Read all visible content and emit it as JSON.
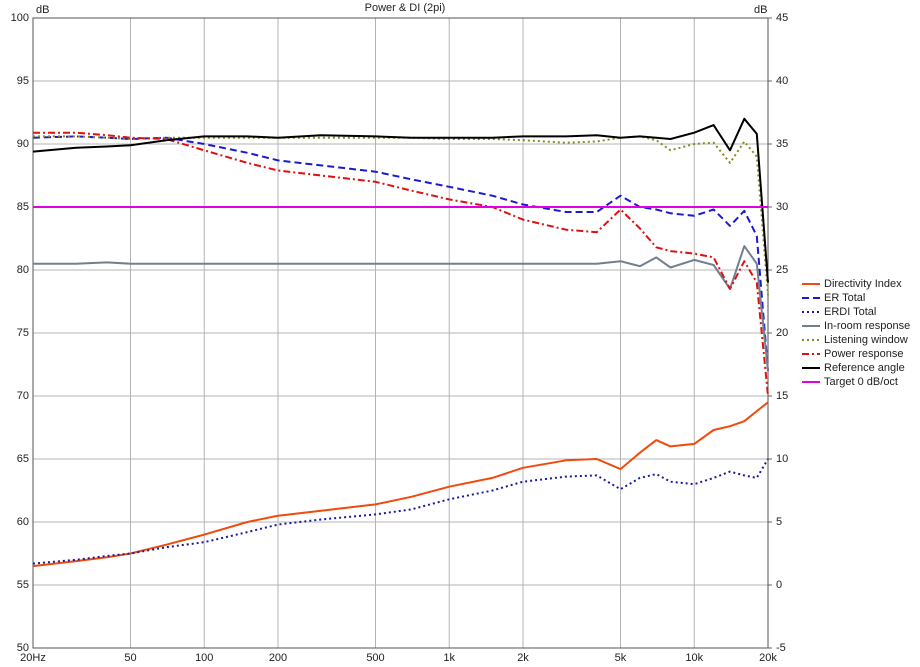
{
  "chart_data": {
    "type": "line",
    "title": "Power & DI (2pi)",
    "y_label": "dB",
    "y2_label": "dB",
    "log_x": true,
    "grid": true,
    "legend": "right",
    "x": [
      20,
      30,
      40,
      50,
      70,
      100,
      150,
      200,
      300,
      500,
      700,
      1000,
      1500,
      2000,
      3000,
      4000,
      5000,
      6000,
      7000,
      8000,
      10000,
      12000,
      14000,
      16000,
      18000,
      20000
    ],
    "xlim": [
      20,
      20000
    ],
    "xticks": [
      {
        "value": 20,
        "label": "20Hz"
      },
      50,
      100,
      200,
      500,
      {
        "value": 1000,
        "label": "1k"
      },
      {
        "value": 2000,
        "label": "2k"
      },
      {
        "value": 5000,
        "label": "5k"
      },
      {
        "value": 10000,
        "label": "10k"
      },
      {
        "value": 20000,
        "label": "20k"
      }
    ],
    "ylim": [
      50,
      100
    ],
    "yticks": [
      50,
      55,
      60,
      65,
      70,
      75,
      80,
      85,
      90,
      95,
      100
    ],
    "y2lim": [
      -5,
      45
    ],
    "y2ticks": [
      -5,
      0,
      5,
      10,
      15,
      20,
      25,
      30,
      35,
      40,
      45
    ],
    "series": [
      {
        "name": "Directivity Index",
        "color": "#f04a0c",
        "dash": "solid",
        "width": 2,
        "axis": "y2",
        "values": [
          1.5,
          1.9,
          2.2,
          2.5,
          3.2,
          4,
          5,
          5.5,
          5.9,
          6.4,
          7,
          7.8,
          8.5,
          9.3,
          9.9,
          10,
          9.2,
          10.5,
          11.5,
          11,
          11.2,
          12.3,
          12.6,
          13,
          13.8,
          14.5
        ]
      },
      {
        "name": "ER Total",
        "color": "#1a1ad0",
        "dash": "dashed",
        "width": 2,
        "values": [
          90.5,
          90.6,
          90.5,
          90.4,
          90.5,
          90,
          89.3,
          88.7,
          88.3,
          87.8,
          87.2,
          86.6,
          85.9,
          85.2,
          84.6,
          84.6,
          85.9,
          85,
          84.8,
          84.5,
          84.3,
          84.8,
          83.5,
          84.7,
          82.7,
          72
        ]
      },
      {
        "name": "ERDI Total",
        "color": "#1a1a99",
        "dash": "dotted",
        "width": 2,
        "axis": "y2",
        "values": [
          1.7,
          2,
          2.3,
          2.5,
          3,
          3.4,
          4.2,
          4.8,
          5.2,
          5.6,
          6,
          6.8,
          7.5,
          8.2,
          8.6,
          8.7,
          7.6,
          8.5,
          8.8,
          8.2,
          8,
          8.5,
          9,
          8.7,
          8.5,
          10
        ]
      },
      {
        "name": "In-room response",
        "color": "#708090",
        "dash": "solid",
        "width": 2,
        "values": [
          80.5,
          80.5,
          80.6,
          80.5,
          80.5,
          80.5,
          80.5,
          80.5,
          80.5,
          80.5,
          80.5,
          80.5,
          80.5,
          80.5,
          80.5,
          80.5,
          80.7,
          80.3,
          81,
          80.2,
          80.8,
          80.4,
          78.5,
          81.9,
          80.5,
          72
        ]
      },
      {
        "name": "Listening window",
        "color": "#8a8a20",
        "dash": "dotted",
        "width": 2,
        "values": [
          90.6,
          90.6,
          90.5,
          90.4,
          90.5,
          90.5,
          90.5,
          90.5,
          90.5,
          90.5,
          90.5,
          90.4,
          90.4,
          90.3,
          90.1,
          90.2,
          90.5,
          90.6,
          90.3,
          89.5,
          90,
          90.1,
          88.5,
          90.2,
          89,
          78
        ]
      },
      {
        "name": "Power response",
        "color": "#e01010",
        "dash": "dashdot",
        "width": 2,
        "values": [
          90.9,
          90.9,
          90.7,
          90.5,
          90.4,
          89.5,
          88.5,
          87.9,
          87.5,
          87,
          86.3,
          85.6,
          85,
          84,
          83.2,
          83,
          84.8,
          83.3,
          81.8,
          81.5,
          81.3,
          81,
          78.5,
          80.7,
          79,
          70
        ]
      },
      {
        "name": "Reference angle",
        "color": "#000000",
        "dash": "solid",
        "width": 2,
        "values": [
          89.4,
          89.7,
          89.8,
          89.9,
          90.3,
          90.6,
          90.6,
          90.5,
          90.7,
          90.6,
          90.5,
          90.5,
          90.5,
          90.6,
          90.6,
          90.7,
          90.5,
          90.6,
          90.5,
          90.4,
          90.9,
          91.5,
          89.5,
          92,
          90.8,
          79
        ]
      },
      {
        "name": "Target 0 dB/oct",
        "color": "#e000e0",
        "dash": "solid",
        "width": 2,
        "values": [
          85,
          85,
          85,
          85,
          85,
          85,
          85,
          85,
          85,
          85,
          85,
          85,
          85,
          85,
          85,
          85,
          85,
          85,
          85,
          85,
          85,
          85,
          85,
          85,
          85,
          85
        ]
      }
    ]
  }
}
